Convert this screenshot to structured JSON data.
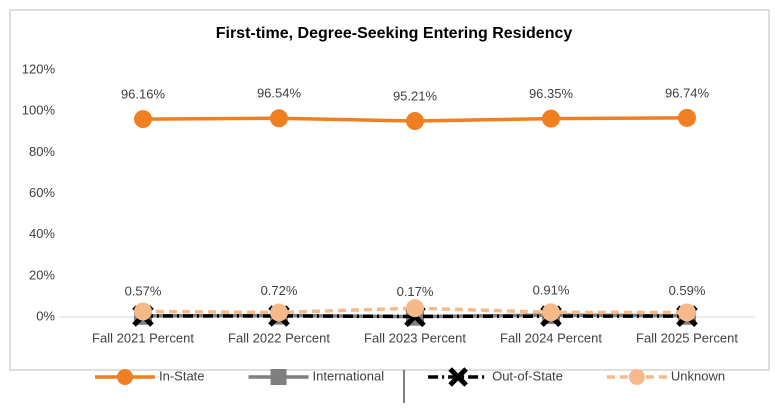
{
  "chart_data": {
    "type": "line",
    "title": "First-time, Degree-Seeking Entering Residency",
    "categories": [
      "Fall 2021 Percent",
      "Fall 2022 Percent",
      "Fall 2023 Percent",
      "Fall 2024 Percent",
      "Fall 2025 Percent"
    ],
    "ylim": [
      0,
      120
    ],
    "yticks": [
      {
        "value": 0,
        "label": "0%"
      },
      {
        "value": 20,
        "label": "20%"
      },
      {
        "value": 40,
        "label": "40%"
      },
      {
        "value": 60,
        "label": "60%"
      },
      {
        "value": 80,
        "label": "80%"
      },
      {
        "value": 100,
        "label": "100%"
      },
      {
        "value": 120,
        "label": "120%"
      }
    ],
    "grid": false,
    "legend": "bottom",
    "series": [
      {
        "name": "In-State",
        "color": "#f07f22",
        "dash": "solid",
        "marker": "circle",
        "values": [
          96.16,
          96.54,
          95.21,
          96.35,
          96.74
        ],
        "value_labels": [
          "96.16%",
          "96.54%",
          "95.21%",
          "96.35%",
          "96.74%"
        ]
      },
      {
        "name": "International",
        "color": "#7f7f7f",
        "dash": "solid",
        "marker": "square",
        "values": [
          0.57,
          0.72,
          0.17,
          0.91,
          0.59
        ],
        "value_labels": [
          "0.57%",
          "0.72%",
          "0.17%",
          "0.91%",
          "0.59%"
        ]
      },
      {
        "name": "Out-of-State",
        "color": "#000000",
        "dash": "dashdot",
        "marker": "x",
        "values": [
          0.5,
          0.5,
          0.3,
          0.4,
          0.4
        ]
      },
      {
        "name": "Unknown",
        "color": "#f8b98a",
        "dash": "dash",
        "marker": "circle",
        "values": [
          2.7,
          2.2,
          4.3,
          2.3,
          2.2
        ]
      }
    ]
  }
}
